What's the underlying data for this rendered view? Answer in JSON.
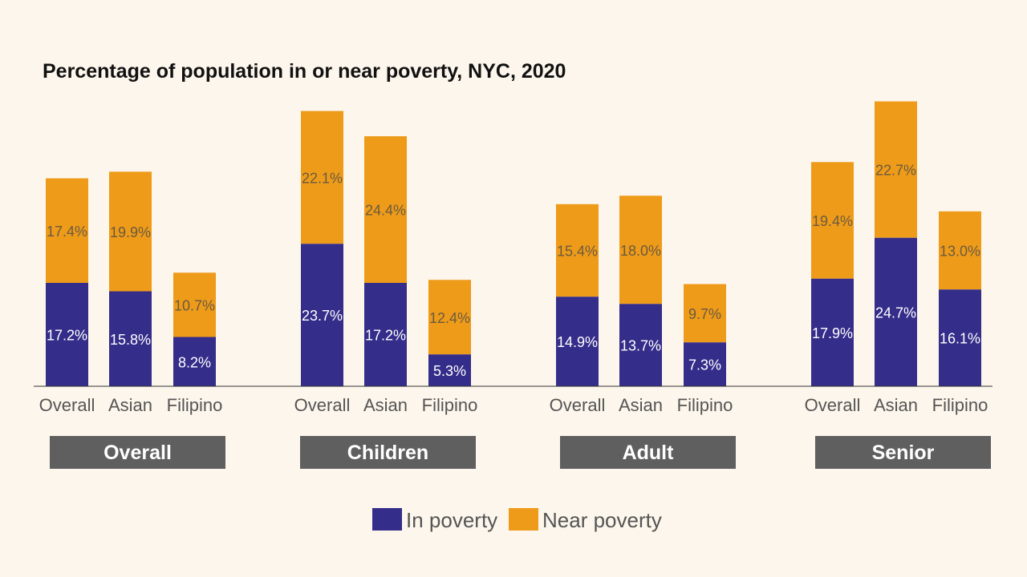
{
  "chart_data": {
    "type": "bar",
    "stacked": true,
    "title": "Percentage of population in or near poverty, NYC, 2020",
    "groups": [
      {
        "label": "Overall",
        "categories": [
          "Overall",
          "Asian",
          "Filipino"
        ],
        "in_poverty": [
          17.2,
          15.8,
          8.2
        ],
        "near_poverty": [
          17.4,
          19.9,
          10.7
        ]
      },
      {
        "label": "Children",
        "categories": [
          "Overall",
          "Asian",
          "Filipino"
        ],
        "in_poverty": [
          23.7,
          17.2,
          5.3
        ],
        "near_poverty": [
          22.1,
          24.4,
          12.4
        ]
      },
      {
        "label": "Adult",
        "categories": [
          "Overall",
          "Asian",
          "Filipino"
        ],
        "in_poverty": [
          14.9,
          13.7,
          7.3
        ],
        "near_poverty": [
          15.4,
          18.0,
          9.7
        ]
      },
      {
        "label": "Senior",
        "categories": [
          "Overall",
          "Asian",
          "Filipino"
        ],
        "in_poverty": [
          17.9,
          24.7,
          16.1
        ],
        "near_poverty": [
          19.4,
          22.7,
          13.0
        ]
      }
    ],
    "series": [
      {
        "name": "In poverty",
        "color": "#352d8a"
      },
      {
        "name": "Near poverty",
        "color": "#ee9b1a"
      }
    ],
    "ylim": [
      0,
      50
    ],
    "grid": false,
    "legend": "bottom-center",
    "group_label_color": "#5f5f5f"
  }
}
